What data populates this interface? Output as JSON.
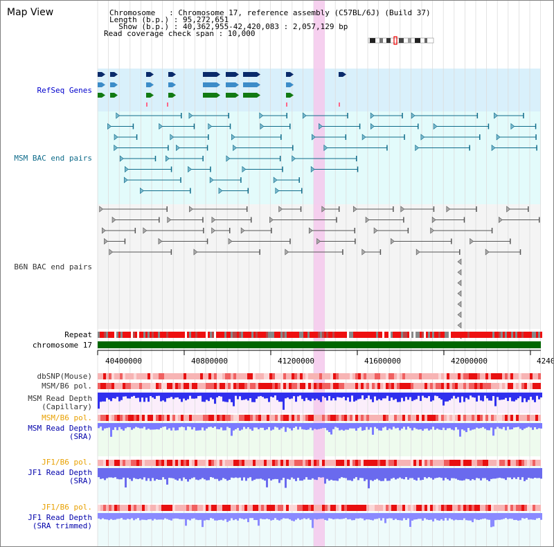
{
  "app": {
    "title": "Map View"
  },
  "header": {
    "chromosome_line": "Chromosome   : Chromosome 17, reference assembly (C57BL/6J) (Build 37)",
    "length_line": "Length (b.p.) : 95,272,651",
    "show_line": "  Show (b.p.) : 40,362,955-42,420,083 : 2,057,129 bp",
    "read_coverage_line": "Read coverage check span : 10,000"
  },
  "tracks": {
    "refseq": {
      "label": "RefSeq Genes",
      "color": "#0000cc"
    },
    "msm_bac": {
      "label": "MSM BAC end pairs",
      "color": "#0e6b8a"
    },
    "b6n_bac": {
      "label": "B6N BAC end pairs",
      "color": "#333333"
    },
    "repeat": {
      "label": "Repeat"
    },
    "chromosome": {
      "label": "chromosome 17"
    },
    "dbsnp": {
      "label": "dbSNP(Mouse)"
    },
    "msm_b6_pol": {
      "label": "MSM/B6 pol."
    },
    "msm_read_depth_cap": {
      "label": "MSM Read Depth\n(Capillary)"
    },
    "msm_b6_pol_2": {
      "label": "MSM/B6 pol.",
      "color": "#e8a000"
    },
    "msm_read_depth_sra": {
      "label": "MSM Read Depth\n(SRA)",
      "color": "#0000aa"
    },
    "jf1_b6_pol": {
      "label": "JF1/B6 pol.",
      "color": "#e8a000"
    },
    "jf1_read_depth_sra": {
      "label": "JF1 Read Depth\n(SRA)",
      "color": "#0000aa"
    },
    "jf1_b6_pol_2": {
      "label": "JF1/B6 pol.",
      "color": "#e8a000"
    },
    "jf1_read_depth_trim": {
      "label": "JF1 Read Depth\n(SRA trimmed)",
      "color": "#0000aa"
    }
  },
  "axis": {
    "ticks": [
      "40400000",
      "40800000",
      "41200000",
      "41600000",
      "42000000",
      "4240"
    ]
  },
  "colors": {
    "highlight": "#f5c8ec",
    "refseq_bg": "#d9f0fb",
    "msm_bg": "#e3fbfb",
    "chromosome_bar": "#006600",
    "depth_blue": "#4a4aff",
    "snp_red": "#e81010"
  }
}
